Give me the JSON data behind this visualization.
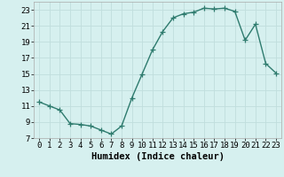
{
  "x": [
    0,
    1,
    2,
    3,
    4,
    5,
    6,
    7,
    8,
    9,
    10,
    11,
    12,
    13,
    14,
    15,
    16,
    17,
    18,
    19,
    20,
    21,
    22,
    23
  ],
  "y": [
    11.5,
    11.0,
    10.5,
    8.8,
    8.7,
    8.5,
    8.0,
    7.5,
    8.5,
    12.0,
    15.0,
    18.0,
    20.3,
    22.0,
    22.5,
    22.7,
    23.2,
    23.1,
    23.2,
    22.8,
    19.2,
    21.2,
    16.3,
    15.1
  ],
  "line_color": "#2e7b6e",
  "marker": "+",
  "bg_color": "#d6f0ef",
  "grid_color": "#c0dedd",
  "xlabel": "Humidex (Indice chaleur)",
  "xlim": [
    -0.5,
    23.5
  ],
  "ylim": [
    7,
    24
  ],
  "yticks": [
    7,
    9,
    11,
    13,
    15,
    17,
    19,
    21,
    23
  ],
  "xticks": [
    0,
    1,
    2,
    3,
    4,
    5,
    6,
    7,
    8,
    9,
    10,
    11,
    12,
    13,
    14,
    15,
    16,
    17,
    18,
    19,
    20,
    21,
    22,
    23
  ],
  "tick_fontsize": 6.5,
  "xlabel_fontsize": 7.5,
  "linewidth": 1.0,
  "markersize": 4
}
